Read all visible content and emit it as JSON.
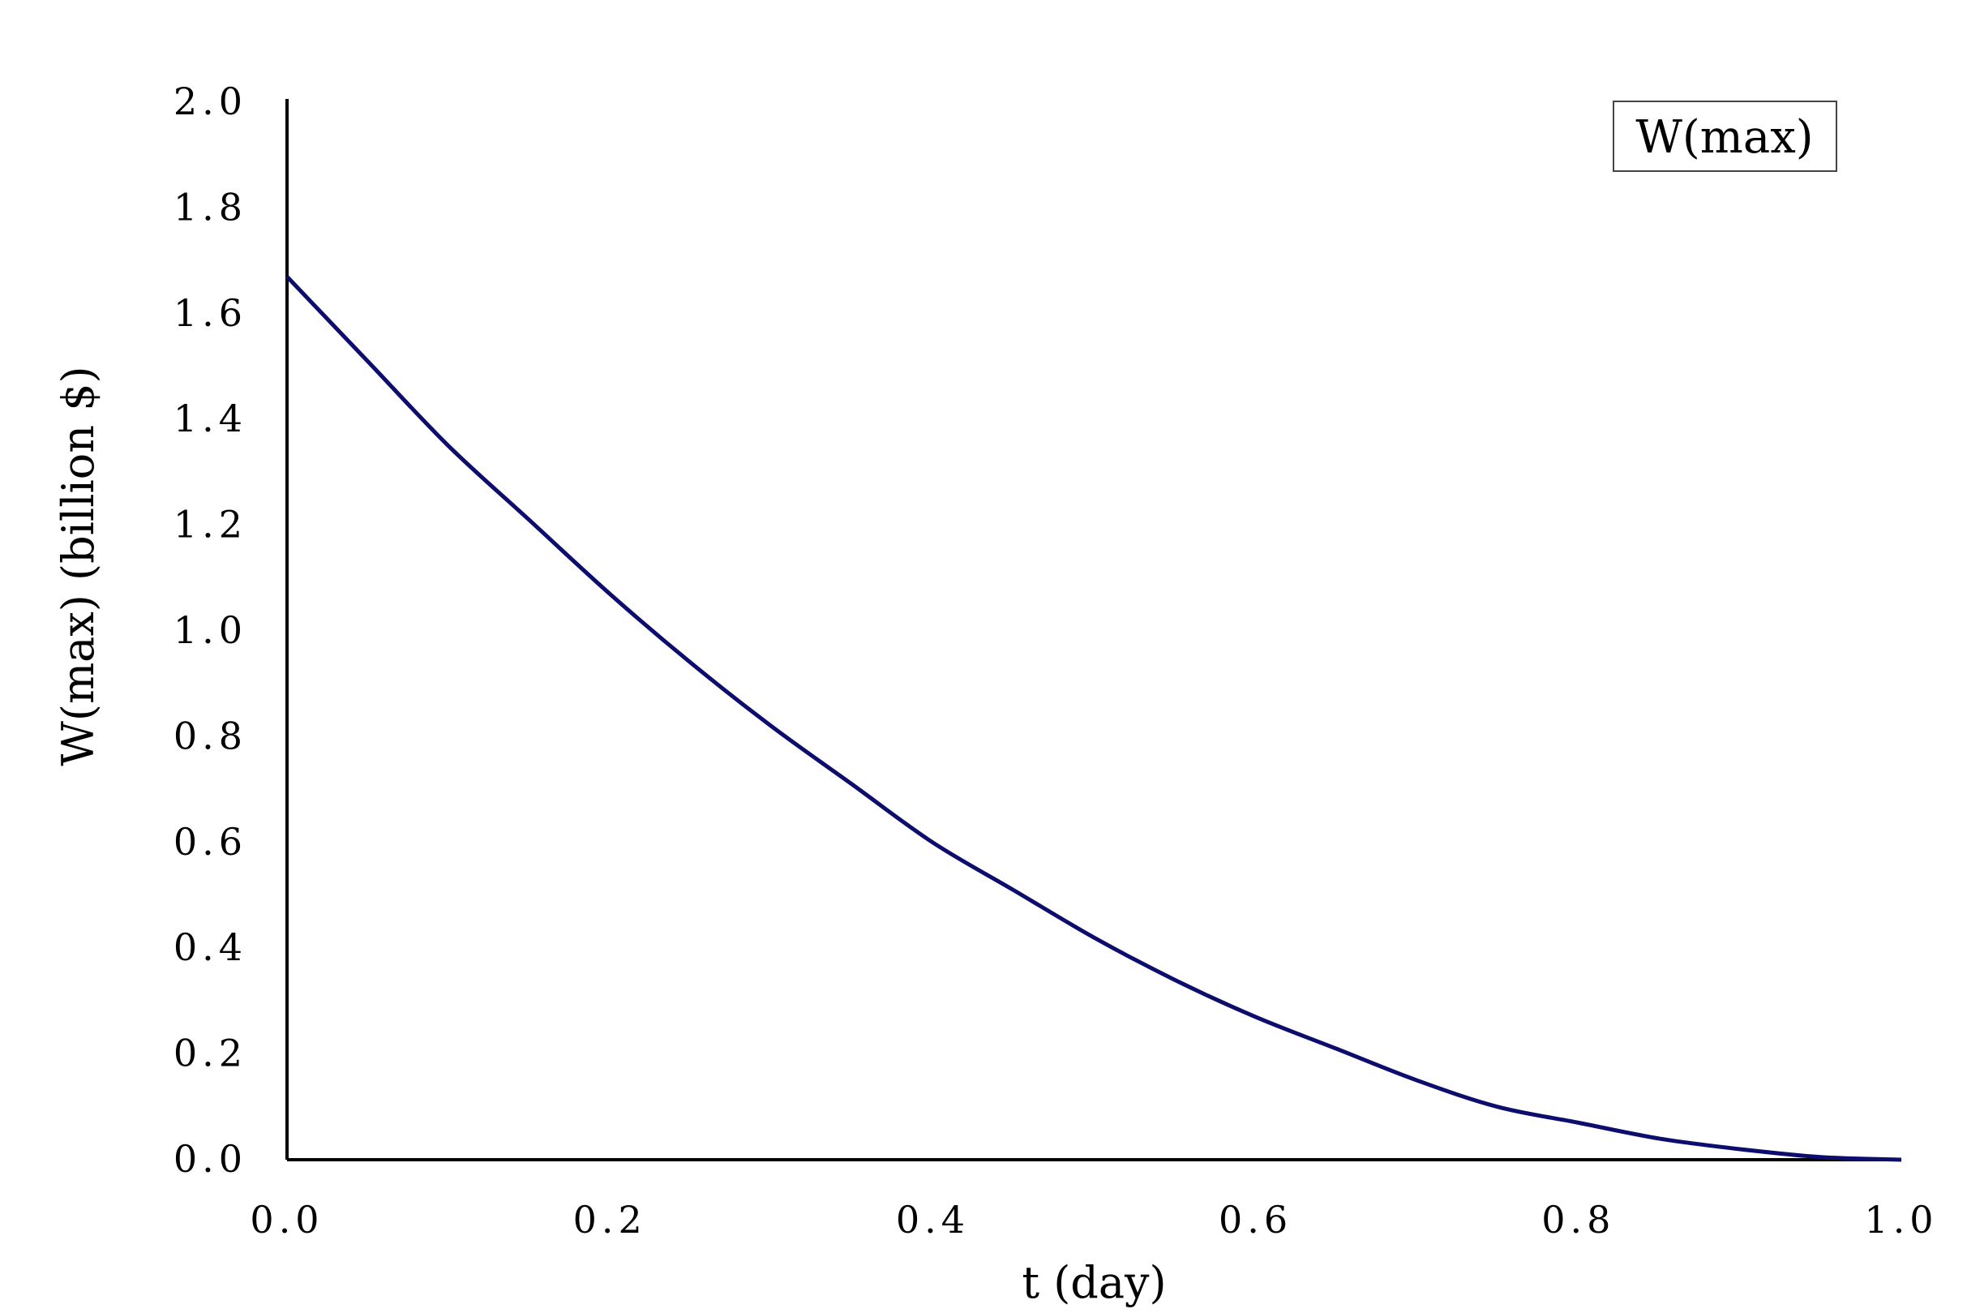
{
  "chart_data": {
    "type": "line",
    "xlabel": "t (day)",
    "ylabel": "W(max)  (billion $)",
    "xlim": [
      0,
      1
    ],
    "ylim": [
      0,
      2
    ],
    "xticks": [
      "0.0",
      "0.2",
      "0.4",
      "0.6",
      "0.8",
      "1.0"
    ],
    "yticks": [
      "0.0",
      "0.2",
      "0.4",
      "0.6",
      "0.8",
      "1.0",
      "1.2",
      "1.4",
      "1.6",
      "1.8",
      "2.0"
    ],
    "grid": false,
    "legend_position": "top-right",
    "series": [
      {
        "name": "W(max)",
        "color": "#0d0d6e",
        "x": [
          0.0,
          0.05,
          0.1,
          0.15,
          0.2,
          0.25,
          0.3,
          0.35,
          0.4,
          0.45,
          0.5,
          0.55,
          0.6,
          0.65,
          0.7,
          0.75,
          0.8,
          0.85,
          0.9,
          0.95,
          1.0
        ],
        "y": [
          1.67,
          1.51,
          1.35,
          1.21,
          1.07,
          0.94,
          0.82,
          0.71,
          0.6,
          0.51,
          0.42,
          0.34,
          0.27,
          0.21,
          0.15,
          0.1,
          0.07,
          0.04,
          0.02,
          0.005,
          0.0
        ]
      }
    ]
  }
}
